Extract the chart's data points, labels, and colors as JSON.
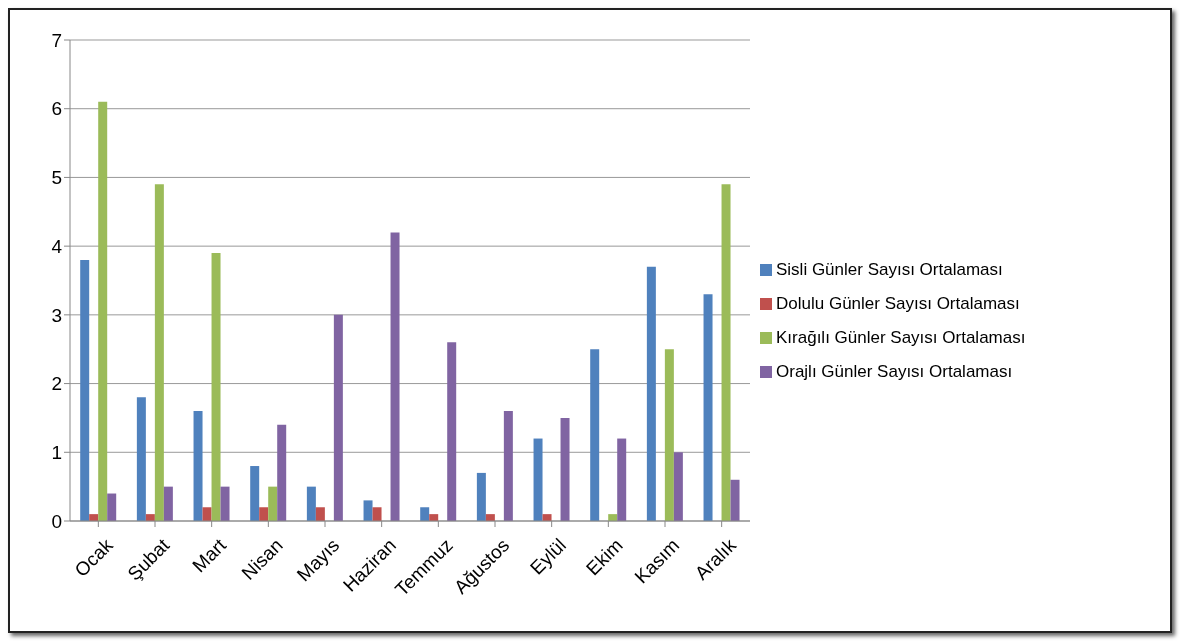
{
  "chart_data": {
    "type": "bar",
    "categories": [
      "Ocak",
      "Şubat",
      "Mart",
      "Nisan",
      "Mayıs",
      "Haziran",
      "Temmuz",
      "Ağustos",
      "Eylül",
      "Ekim",
      "Kasım",
      "Aralık"
    ],
    "series": [
      {
        "name": "Sisli Günler Sayısı Ortalaması",
        "color": "#4f81bd",
        "values": [
          3.8,
          1.8,
          1.6,
          0.8,
          0.5,
          0.3,
          0.2,
          0.7,
          1.2,
          2.5,
          3.7,
          3.3
        ]
      },
      {
        "name": "Dolulu Günler Sayısı Ortalaması",
        "color": "#c0504d",
        "values": [
          0.1,
          0.1,
          0.2,
          0.2,
          0.2,
          0.2,
          0.1,
          0.1,
          0.1,
          0,
          0,
          0
        ]
      },
      {
        "name": "Kırağılı Günler Sayısı Ortalaması",
        "color": "#9bbb59",
        "values": [
          6.1,
          4.9,
          3.9,
          0.5,
          0,
          0,
          0,
          0,
          0,
          0.1,
          2.5,
          4.9
        ]
      },
      {
        "name": "Orajlı Günler Sayısı Ortalaması",
        "color": "#8064a2",
        "values": [
          0.4,
          0.5,
          0.5,
          1.4,
          3.0,
          4.2,
          2.6,
          1.6,
          1.5,
          1.2,
          1.0,
          0.6
        ]
      }
    ],
    "ylim": [
      0,
      7
    ],
    "yticks": [
      0,
      1,
      2,
      3,
      4,
      5,
      6,
      7
    ],
    "grid": "y",
    "legend": "right"
  }
}
